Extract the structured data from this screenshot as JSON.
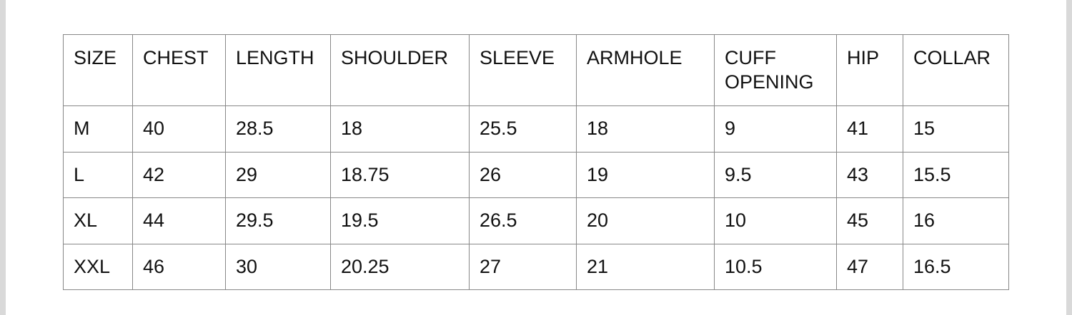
{
  "table": {
    "headers": [
      "SIZE",
      "CHEST",
      "LENGTH",
      "SHOULDER",
      "SLEEVE",
      "ARMHOLE",
      "CUFF OPENING",
      "HIP",
      "COLLAR"
    ],
    "rows": [
      [
        "M",
        "40",
        "28.5",
        "18",
        "25.5",
        "18",
        "9",
        "41",
        "15"
      ],
      [
        "L",
        "42",
        "29",
        "18.75",
        "26",
        "19",
        "9.5",
        "43",
        "15.5"
      ],
      [
        "XL",
        "44",
        "29.5",
        "19.5",
        "26.5",
        "20",
        "10",
        "45",
        "16"
      ],
      [
        "XXL",
        "46",
        "30",
        "20.25",
        "27",
        "21",
        "10.5",
        "47",
        "16.5"
      ]
    ]
  }
}
